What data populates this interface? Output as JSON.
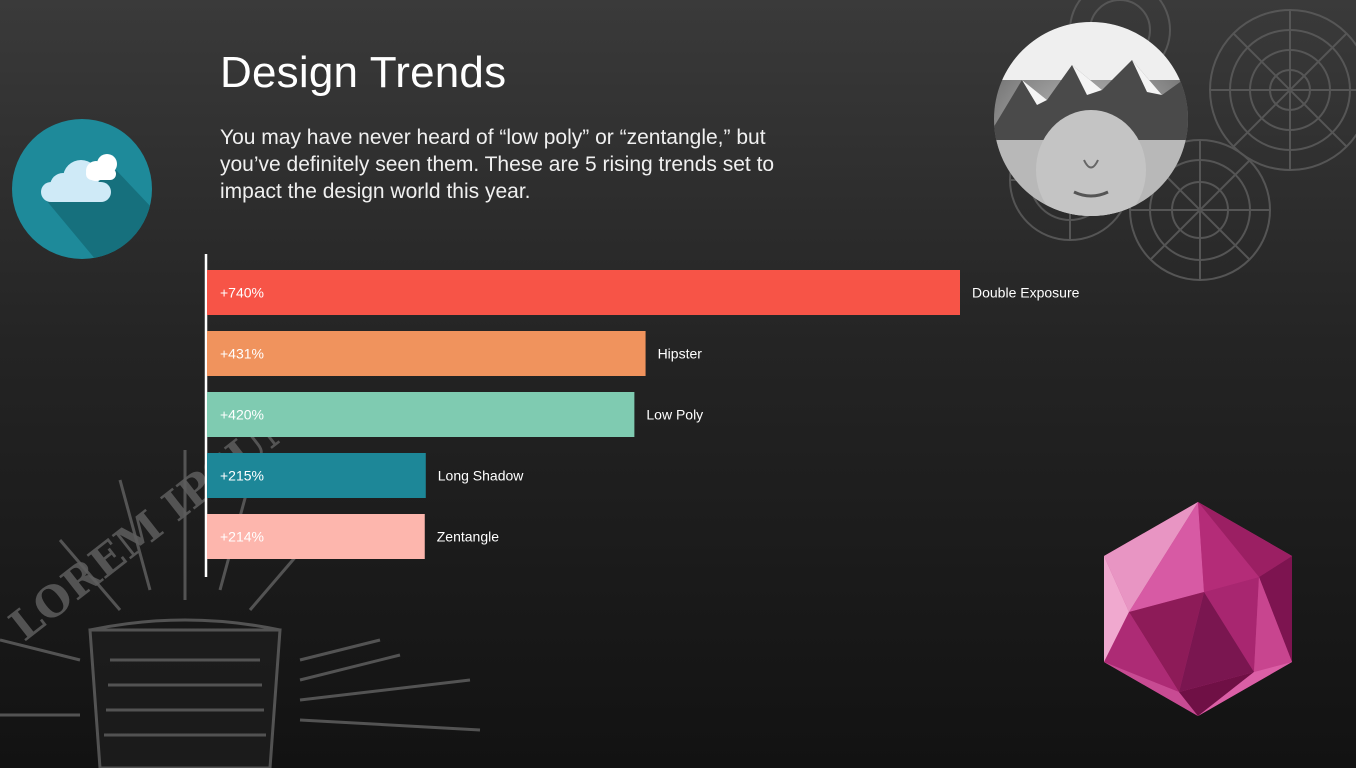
{
  "slide": {
    "title": "Design Trends",
    "subtitle": "You may have never heard of “low poly” or “zentangle,” but you’ve definitely seen them. These are 5 rising trends set to impact the design world this year."
  },
  "decor": {
    "logo_text": "LOREM IPSUM"
  },
  "chart_data": {
    "type": "bar",
    "orientation": "horizontal",
    "categories": [
      "Double Exposure",
      "Hipster",
      "Low Poly",
      "Long Shadow",
      "Zentangle"
    ],
    "values": [
      740,
      431,
      420,
      215,
      214
    ],
    "value_labels": [
      "+740%",
      "+431%",
      "+420%",
      "+215%",
      "+214%"
    ],
    "colors": [
      "#f75447",
      "#f0935d",
      "#7fcbb1",
      "#1d8798",
      "#fdb6ad"
    ],
    "xlim": [
      0,
      740
    ],
    "grid": false,
    "legend": "none"
  }
}
